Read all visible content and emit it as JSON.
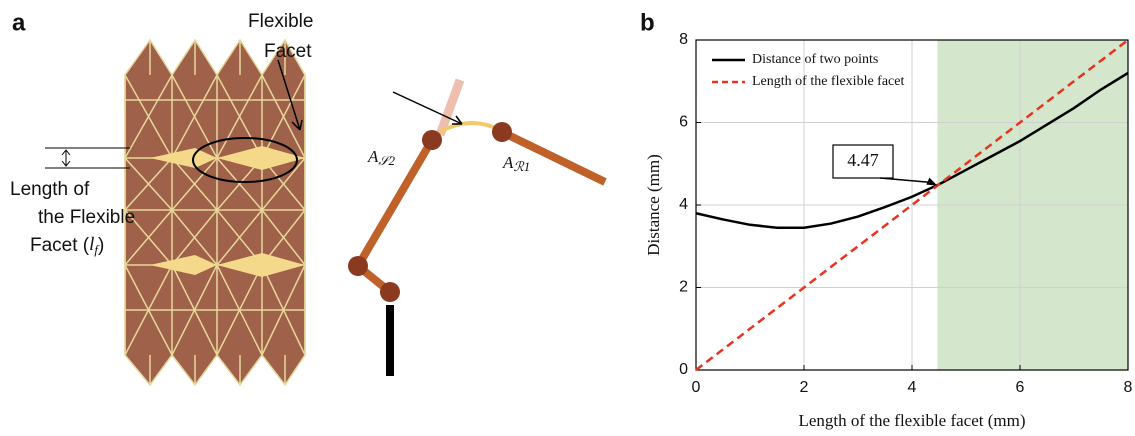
{
  "panel_a": {
    "label": "a",
    "facet_label": [
      "Flexible",
      "Facet"
    ],
    "length_label": {
      "lines": [
        "Length of",
        "the Flexible"
      ],
      "last": {
        "text": "Facet (",
        "var": "l",
        "sub": "f",
        "close": ")"
      }
    },
    "joint_labels": [
      {
        "base": "A",
        "sub": "𝒮2"
      },
      {
        "base": "A",
        "sub": "ℛ1"
      }
    ]
  },
  "chart_data": {
    "type": "line",
    "panel_label": "b",
    "x_label": "Length of the flexible facet (mm)",
    "y_label": "Distance (mm)",
    "xlim": [
      0,
      8
    ],
    "ylim": [
      0,
      8
    ],
    "xticks": [
      0,
      2,
      4,
      6,
      8
    ],
    "yticks": [
      0,
      2,
      4,
      6,
      8
    ],
    "grid": true,
    "legend": "upper left",
    "series": [
      {
        "name": "Distance of two points",
        "color": "#000000",
        "linestyle": "solid",
        "x": [
          0,
          0.5,
          1,
          1.5,
          2,
          2.5,
          3,
          3.5,
          4,
          4.5,
          5,
          5.5,
          6,
          6.5,
          7,
          7.5,
          8
        ],
        "values": [
          3.8,
          3.65,
          3.52,
          3.45,
          3.45,
          3.55,
          3.72,
          3.95,
          4.2,
          4.5,
          4.85,
          5.2,
          5.55,
          5.95,
          6.35,
          6.8,
          7.2
        ]
      },
      {
        "name": "Length of the flexible facet",
        "color": "#e8331e",
        "linestyle": "dashed",
        "x": [
          0,
          8
        ],
        "values": [
          0,
          8
        ]
      }
    ],
    "annotation": {
      "text": "4.47",
      "x": 4.47,
      "y": 4.47
    },
    "shaded_region": {
      "x": [
        4.47,
        8
      ],
      "color": "#d4e6cb"
    }
  }
}
